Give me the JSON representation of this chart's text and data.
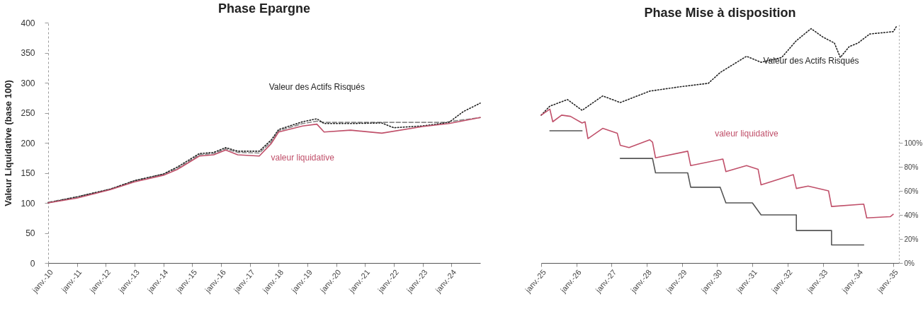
{
  "chart_data": [
    {
      "type": "line",
      "title": "Phase Epargne",
      "ylabel": "Valeur Liquidative (base 100)",
      "xlim": [
        "2010-01",
        "2025-01"
      ],
      "ylim": [
        0,
        400
      ],
      "yticks": [
        0,
        50,
        100,
        150,
        200,
        250,
        300,
        350,
        400
      ],
      "xticks": [
        {
          "value": "2010-01",
          "label": "janv.-10"
        },
        {
          "value": "2011-01",
          "label": "janv.-11"
        },
        {
          "value": "2012-01",
          "label": "janv.-12"
        },
        {
          "value": "2013-01",
          "label": "janv.-13"
        },
        {
          "value": "2014-01",
          "label": "janv.-14"
        },
        {
          "value": "2015-01",
          "label": "janv.-15"
        },
        {
          "value": "2016-01",
          "label": "janv.-16"
        },
        {
          "value": "2017-01",
          "label": "janv.-17"
        },
        {
          "value": "2018-01",
          "label": "janv.-18"
        },
        {
          "value": "2019-01",
          "label": "janv.-19"
        },
        {
          "value": "2020-01",
          "label": "janv.-20"
        },
        {
          "value": "2021-01",
          "label": "janv.-21"
        },
        {
          "value": "2022-01",
          "label": "janv.-22"
        },
        {
          "value": "2023-01",
          "label": "janv.-23"
        },
        {
          "value": "2024-01",
          "label": "janv.-24"
        }
      ],
      "series": [
        {
          "color": "#888888",
          "line_style": "dashed",
          "x": [
            "2010-01",
            "2011-01",
            "2012-03",
            "2013-01",
            "2014-01",
            "2014-07",
            "2015-04",
            "2015-10",
            "2016-03",
            "2016-08",
            "2017-05",
            "2017-10",
            "2018-01",
            "2018-11",
            "2019-05",
            "2019-08",
            "2021-01",
            "2023-10",
            "2025-01"
          ],
          "values": [
            101,
            110,
            123,
            137,
            148,
            158,
            180,
            182,
            190,
            184,
            183,
            202,
            220,
            232,
            236,
            234,
            234,
            234,
            242
          ]
        },
        {
          "name": "Valeur des Actifs Risqués",
          "color": "#222222",
          "line_style": "dotted",
          "x": [
            "2010-01",
            "2011-01",
            "2012-03",
            "2013-01",
            "2014-01",
            "2014-07",
            "2015-04",
            "2015-10",
            "2016-03",
            "2016-08",
            "2017-05",
            "2017-10",
            "2018-01",
            "2018-11",
            "2019-05",
            "2019-08",
            "2020-07",
            "2021-08",
            "2022-01",
            "2023-01",
            "2023-12",
            "2024-06",
            "2025-01"
          ],
          "values": [
            100,
            110,
            123,
            137,
            148,
            160,
            182,
            184,
            192,
            186,
            186,
            205,
            222,
            235,
            240,
            232,
            232,
            233,
            225,
            228,
            234,
            252,
            266
          ]
        },
        {
          "name": "valeur liquidative",
          "color": "#c0506a",
          "line_style": "solid",
          "x": [
            "2010-01",
            "2011-01",
            "2012-03",
            "2013-01",
            "2014-01",
            "2014-07",
            "2015-04",
            "2015-10",
            "2016-03",
            "2016-08",
            "2017-05",
            "2017-10",
            "2018-01",
            "2018-11",
            "2019-05",
            "2019-08",
            "2020-07",
            "2021-08",
            "2023-01",
            "2023-12",
            "2025-01"
          ],
          "values": [
            100,
            108,
            122,
            135,
            146,
            156,
            178,
            180,
            188,
            180,
            178,
            199,
            218,
            228,
            231,
            218,
            221,
            216,
            227,
            232,
            242
          ]
        }
      ],
      "legend": false
    },
    {
      "type": "line",
      "title": "Phase Mise à disposition",
      "xlim": [
        "2025-01",
        "2035-03"
      ],
      "ylim": [
        0,
        400
      ],
      "tick_labels": "x",
      "y2lim": [
        0,
        200
      ],
      "y2ticks": [
        {
          "value": 0,
          "label": "0%"
        },
        {
          "value": 20,
          "label": "20%"
        },
        {
          "value": 40,
          "label": "40%"
        },
        {
          "value": 60,
          "label": "60%"
        },
        {
          "value": 80,
          "label": "80%"
        },
        {
          "value": 100,
          "label": "100%"
        }
      ],
      "xticks": [
        {
          "value": "2025-01",
          "label": "janv.-25"
        },
        {
          "value": "2026-01",
          "label": "janv.-26"
        },
        {
          "value": "2027-01",
          "label": "janv.-27"
        },
        {
          "value": "2028-01",
          "label": "janv.-28"
        },
        {
          "value": "2029-01",
          "label": "janv.-29"
        },
        {
          "value": "2030-01",
          "label": "janv.-30"
        },
        {
          "value": "2031-01",
          "label": "janv.-31"
        },
        {
          "value": "2032-01",
          "label": "janv.-32"
        },
        {
          "value": "2033-01",
          "label": "janv.-33"
        },
        {
          "value": "2034-01",
          "label": "janv.-34"
        },
        {
          "value": "2035-01",
          "label": "janv.-35"
        }
      ],
      "series": [
        {
          "color": "#555555",
          "line_style": "solid",
          "axis": "y2",
          "x": [
            "2025-04",
            "2026-03",
            "2026-09",
            "2027-04",
            "2028-03",
            "2028-04",
            "2029-03",
            "2029-04",
            "2030-02",
            "2030-04",
            "2031-01",
            "2031-04",
            "2032-04",
            "2032-04",
            "2033-04",
            "2033-04",
            "2034-03"
          ],
          "values": [
            110,
            110,
            null,
            87,
            87,
            75,
            75,
            63,
            63,
            50,
            50,
            40,
            40,
            27,
            27,
            15,
            15
          ]
        },
        {
          "name": "Valeur des Actifs Risqués",
          "color": "#222222",
          "line_style": "dotted",
          "x": [
            "2025-01",
            "2025-04",
            "2025-10",
            "2026-03",
            "2026-10",
            "2027-04",
            "2028-02",
            "2028-12",
            "2029-10",
            "2030-02",
            "2030-11",
            "2031-04",
            "2031-11",
            "2032-04",
            "2032-09",
            "2033-01",
            "2033-05",
            "2033-07",
            "2033-10",
            "2034-01",
            "2034-05",
            "2035-01",
            "2035-02"
          ],
          "values": [
            246,
            261,
            272,
            254,
            278,
            267,
            286,
            293,
            299,
            317,
            344,
            334,
            342,
            370,
            390,
            376,
            366,
            342,
            360,
            366,
            381,
            385,
            393
          ]
        },
        {
          "name": "valeur liquidative",
          "color": "#c0506a",
          "line_style": "solid",
          "x": [
            "2025-01",
            "2025-04",
            "2025-05",
            "2025-08",
            "2025-11",
            "2026-03",
            "2026-04",
            "2026-05",
            "2026-10",
            "2027-03",
            "2027-04",
            "2027-07",
            "2028-02",
            "2028-03",
            "2028-04",
            "2029-03",
            "2029-04",
            "2030-03",
            "2030-04",
            "2030-11",
            "2031-03",
            "2031-04",
            "2032-03",
            "2032-04",
            "2032-08",
            "2033-03",
            "2033-04",
            "2034-03",
            "2034-04",
            "2034-12",
            "2035-01"
          ],
          "values": [
            246,
            256,
            235,
            246,
            244,
            233,
            235,
            207,
            224,
            216,
            196,
            192,
            205,
            201,
            175,
            186,
            162,
            173,
            152,
            162,
            156,
            130,
            147,
            124,
            128,
            120,
            94,
            98,
            75,
            77,
            81
          ]
        }
      ],
      "legend": false
    }
  ]
}
